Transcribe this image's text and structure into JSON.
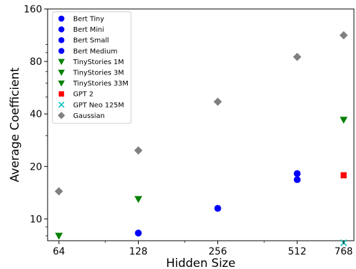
{
  "chart_data": {
    "type": "scatter",
    "title": "",
    "xlabel": "Hidden Size",
    "ylabel": "Average Coefficient",
    "xscale": "log2",
    "yscale": "log",
    "xlim": [
      58,
      840
    ],
    "ylim": [
      7.5,
      160
    ],
    "xticks": [
      64,
      128,
      256,
      512,
      768
    ],
    "xtick_labels": [
      "64",
      "128",
      "256",
      "512",
      "768"
    ],
    "yticks": [
      10,
      20,
      40,
      80,
      160
    ],
    "ytick_labels": [
      "10",
      "20",
      "40",
      "80",
      "160"
    ],
    "grid": false,
    "legend_position": "top-left",
    "series": [
      {
        "name": "Bert Tiny",
        "marker": "circle",
        "color": "#0000ff",
        "points": [
          {
            "x": 128,
            "y": 8.3
          }
        ]
      },
      {
        "name": "Bert Mini",
        "marker": "circle",
        "color": "#0000ff",
        "points": [
          {
            "x": 256,
            "y": 11.5
          }
        ]
      },
      {
        "name": "Bert Small",
        "marker": "circle",
        "color": "#0000ff",
        "points": [
          {
            "x": 512,
            "y": 16.8
          }
        ]
      },
      {
        "name": "Bert Medium",
        "marker": "circle",
        "color": "#0000ff",
        "points": [
          {
            "x": 512,
            "y": 18.2
          }
        ]
      },
      {
        "name": "TinyStories 1M",
        "marker": "triangle-down",
        "color": "#008000",
        "points": [
          {
            "x": 64,
            "y": 8.0
          }
        ]
      },
      {
        "name": "TinyStories 3M",
        "marker": "triangle-down",
        "color": "#008000",
        "points": [
          {
            "x": 128,
            "y": 13.0
          }
        ]
      },
      {
        "name": "TinyStories 33M",
        "marker": "triangle-down",
        "color": "#008000",
        "points": [
          {
            "x": 768,
            "y": 37.0
          }
        ]
      },
      {
        "name": "GPT 2",
        "marker": "square",
        "color": "#ff0000",
        "points": [
          {
            "x": 768,
            "y": 17.8
          }
        ]
      },
      {
        "name": "GPT Neo 125M",
        "marker": "x",
        "color": "#00bfbf",
        "points": [
          {
            "x": 768,
            "y": 7.3
          }
        ]
      },
      {
        "name": "Gaussian",
        "marker": "diamond",
        "color": "#808080",
        "points": [
          {
            "x": 64,
            "y": 14.4
          },
          {
            "x": 128,
            "y": 24.7
          },
          {
            "x": 256,
            "y": 47.0
          },
          {
            "x": 512,
            "y": 85.0
          },
          {
            "x": 768,
            "y": 113.0
          }
        ]
      }
    ]
  }
}
